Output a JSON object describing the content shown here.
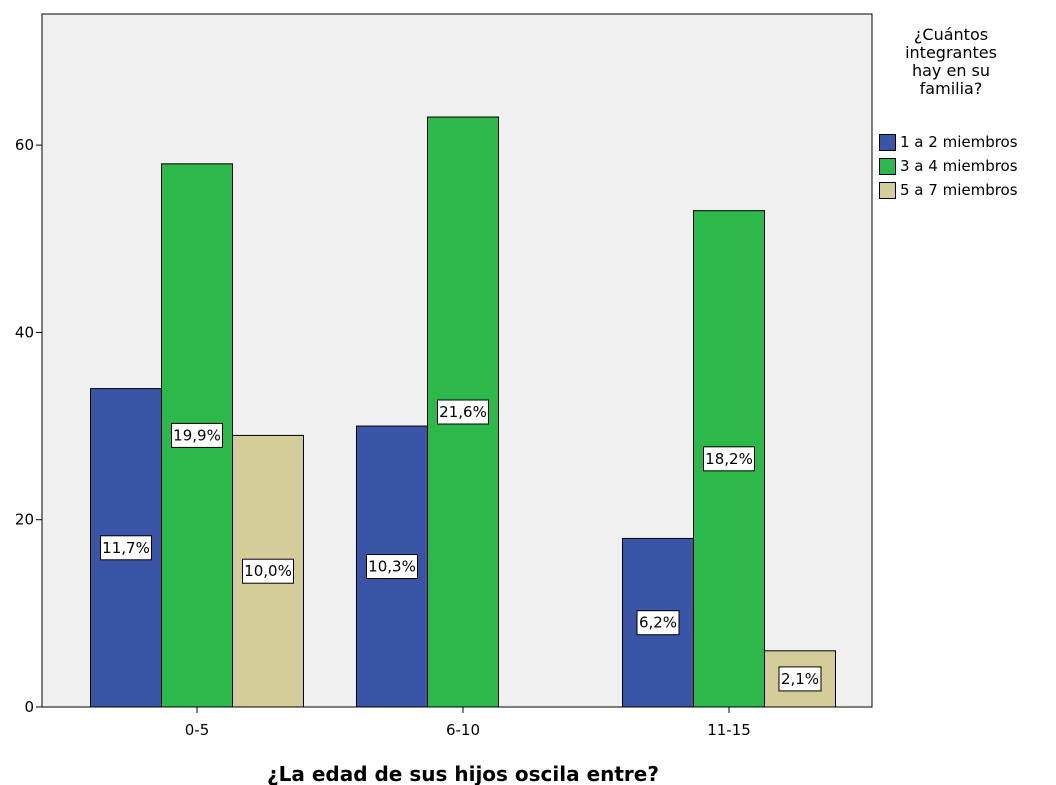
{
  "chart_data": {
    "type": "bar",
    "title": "",
    "xlabel": "¿La edad de sus hijos oscila entre?",
    "ylabel": "",
    "ylim": [
      0,
      74
    ],
    "yticks": [
      0,
      20,
      40,
      60
    ],
    "categories": [
      "0-5",
      "6-10",
      "11-15"
    ],
    "legend_title": "¿Cuántos\nintegrantes\nhay en su\nfamilia?",
    "legend_position": "right",
    "series": [
      {
        "name": "1 a 2 miembros",
        "color": "#3a54a8",
        "values": [
          34,
          30,
          18
        ],
        "labels": [
          "11,7%",
          "10,3%",
          "6,2%"
        ]
      },
      {
        "name": "3 a 4 miembros",
        "color": "#2cb84a",
        "values": [
          58,
          63,
          53
        ],
        "labels": [
          "19,9%",
          "21,6%",
          "18,2%"
        ]
      },
      {
        "name": "5 a 7 miembros",
        "color": "#d4cd9a",
        "values": [
          29,
          0,
          6
        ],
        "labels": [
          "10,0%",
          "",
          "2,1%"
        ]
      }
    ],
    "background": "#f0f0f0",
    "grid": false
  }
}
